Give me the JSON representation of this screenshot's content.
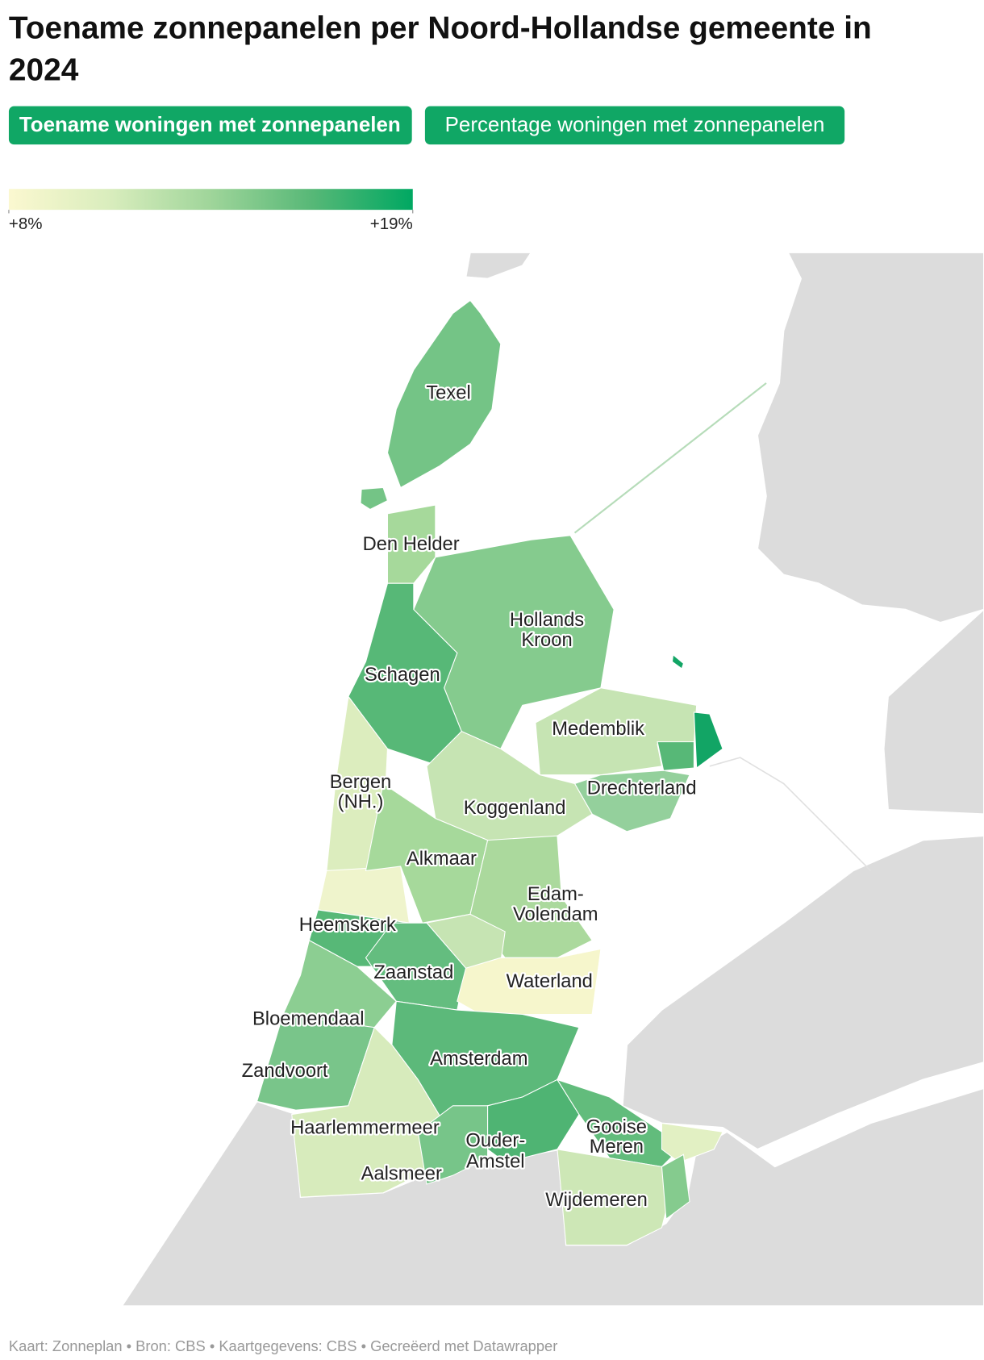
{
  "title": [
    "Toename zonnepanelen per Noord-Hollandse gemeente in",
    "2024"
  ],
  "tabs": [
    "Toename woningen met zonnepanelen",
    "Percentage woningen met zonnepanelen"
  ],
  "legend": {
    "min": {
      "value": 8,
      "label": "+8%"
    },
    "max": {
      "value": 19,
      "label": "+19%"
    },
    "colors": [
      "#fbf8d0",
      "#d9edbd",
      "#9fd59a",
      "#57b877",
      "#00a862"
    ]
  },
  "map": {
    "labels": [
      [
        "Texel"
      ],
      [
        "Den Helder"
      ],
      [
        "Hollands",
        "Kroon"
      ],
      [
        "Schagen"
      ],
      [
        "Medemblik"
      ],
      [
        "Drechterland"
      ],
      [
        "Bergen",
        "(NH.)"
      ],
      [
        "Koggenland"
      ],
      [
        "Alkmaar"
      ],
      [
        "Edam-",
        "Volendam"
      ],
      [
        "Heemskerk"
      ],
      [
        "Zaanstad"
      ],
      [
        "Waterland"
      ],
      [
        "Bloemendaal"
      ],
      [
        "Zandvoort"
      ],
      [
        "Amsterdam"
      ],
      [
        "Haarlemmermeer"
      ],
      [
        "Ouder-",
        "Amstel"
      ],
      [
        "Gooise",
        "Meren"
      ],
      [
        "Aalsmeer"
      ],
      [
        "Wijdemeren"
      ]
    ]
  },
  "footer": "Kaart: Zonneplan • Bron: CBS • Kaartgegevens: CBS • Gecreëerd met Datawrapper"
}
